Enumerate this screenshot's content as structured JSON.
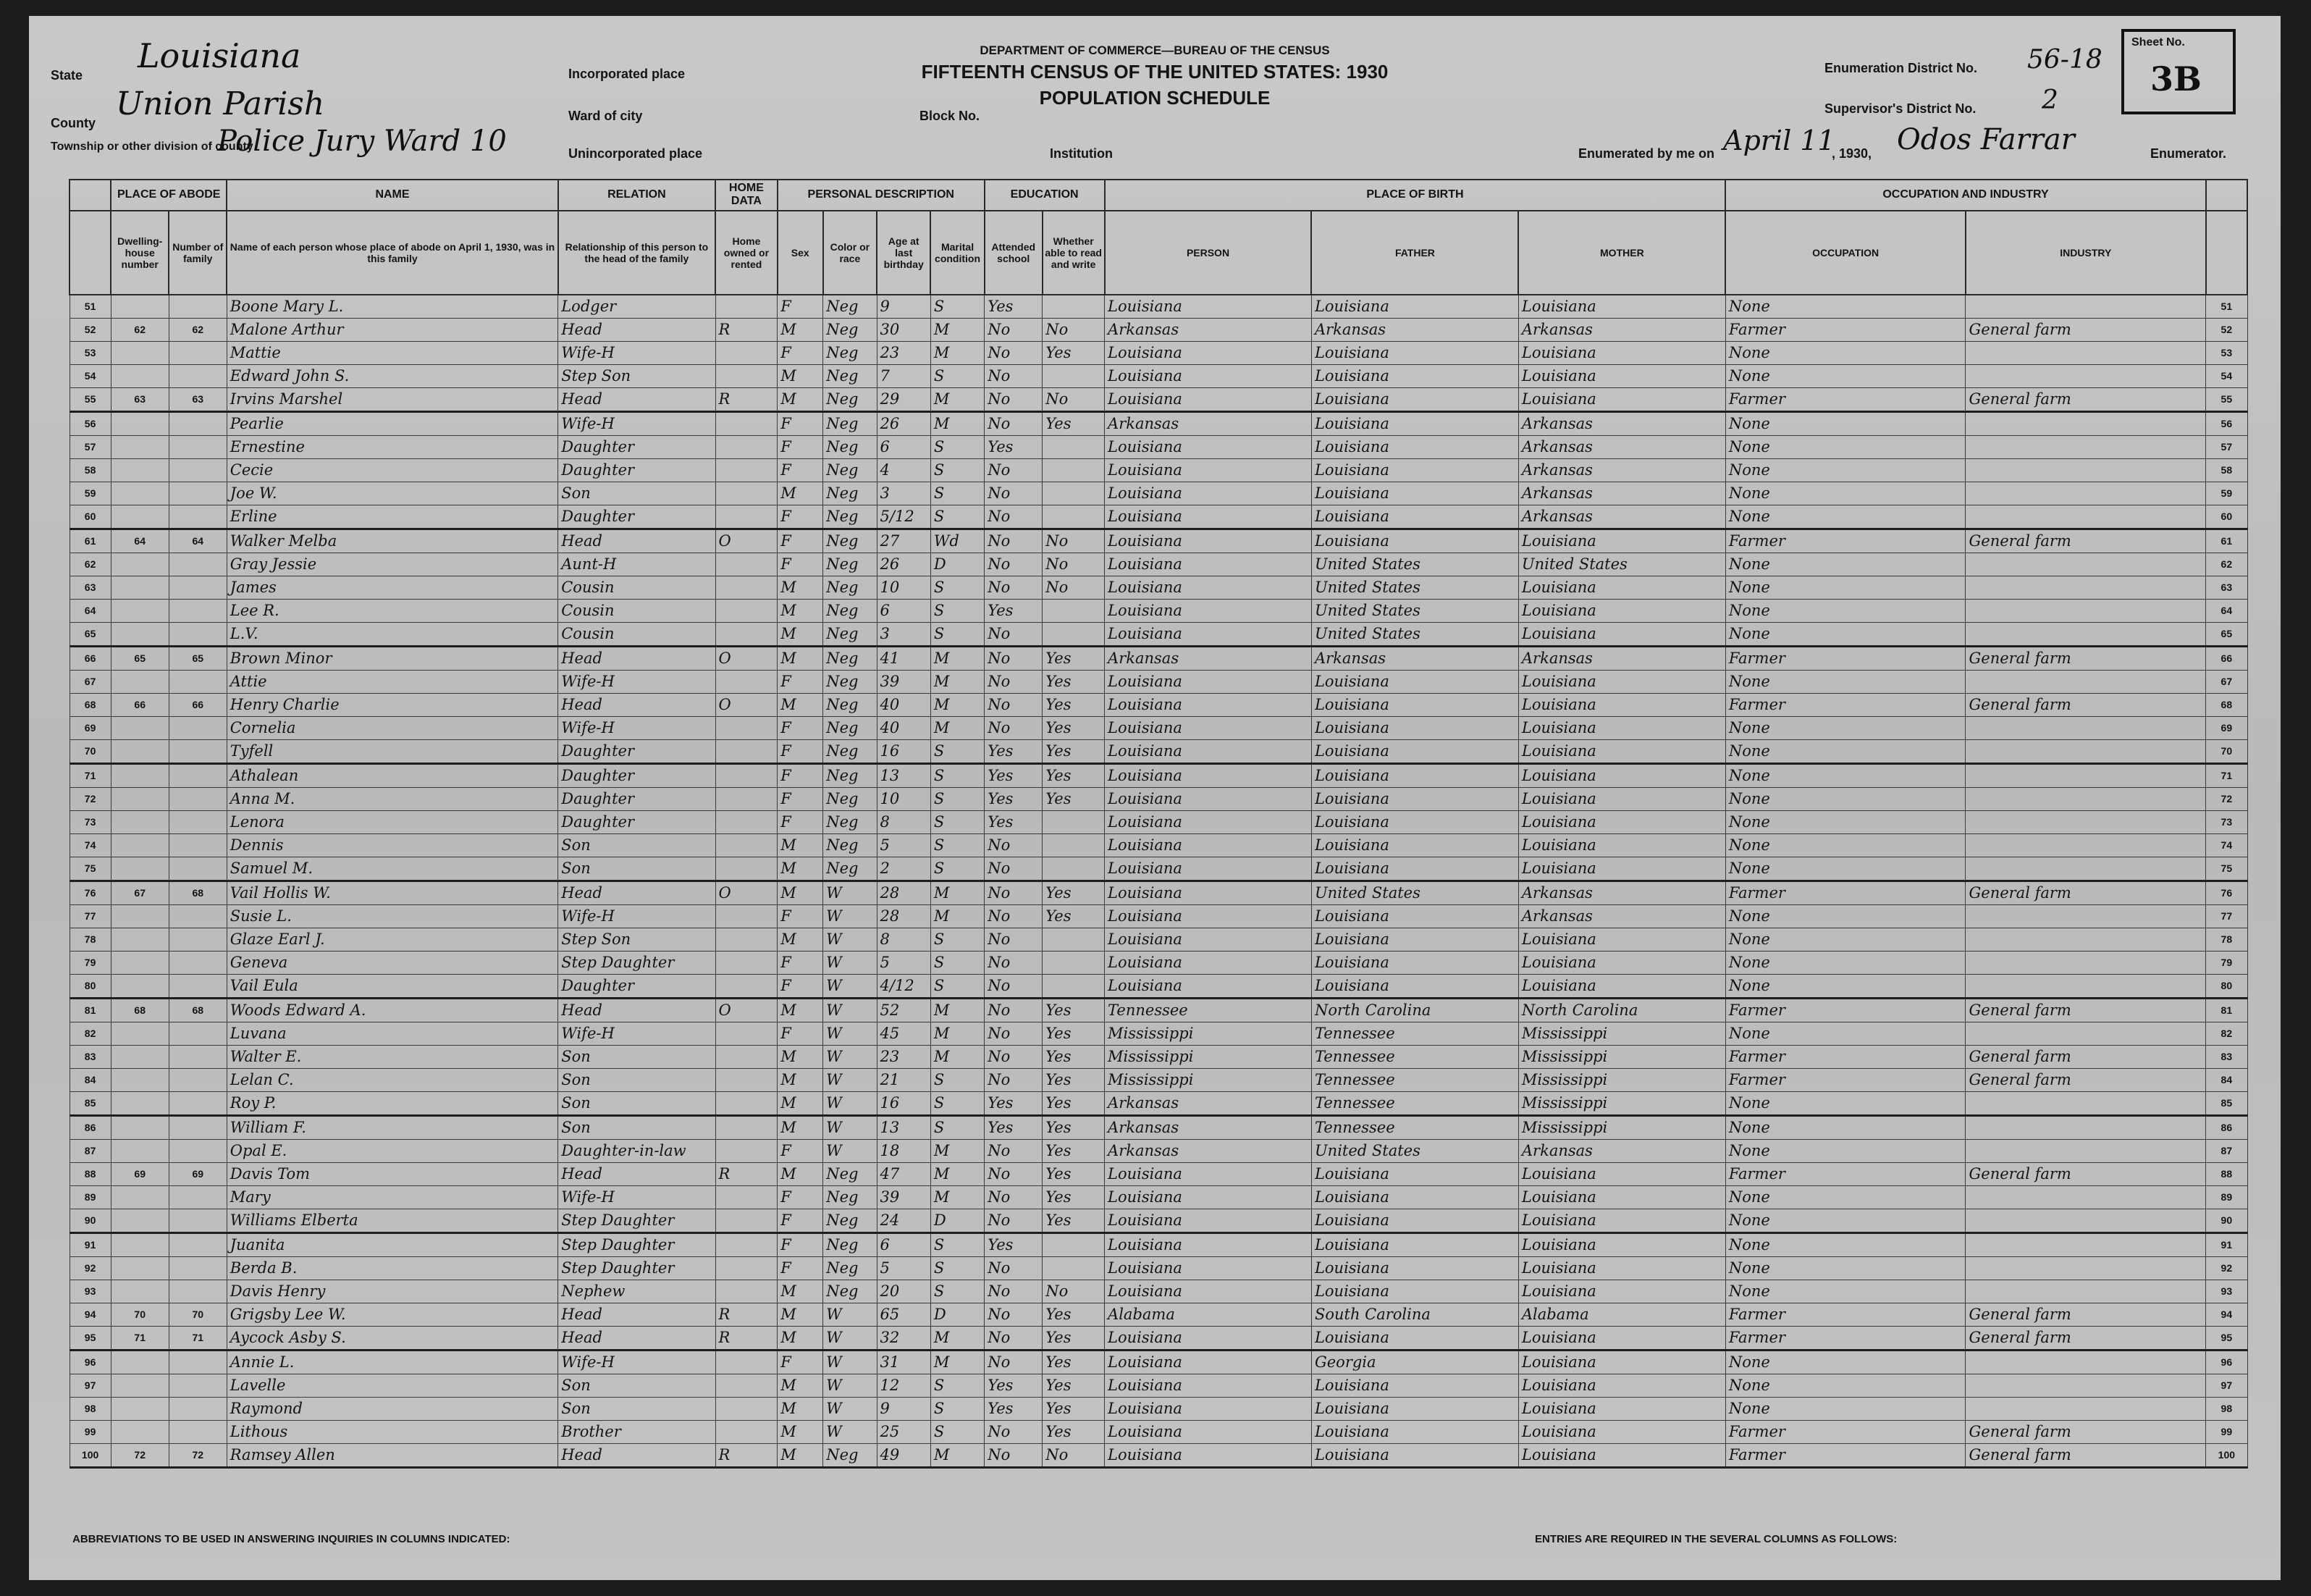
{
  "header": {
    "department": "DEPARTMENT OF COMMERCE—BUREAU OF THE CENSUS",
    "title": "FIFTEENTH CENSUS OF THE UNITED STATES: 1930",
    "subtitle": "POPULATION SCHEDULE",
    "state": {
      "label": "State",
      "value": "Louisiana"
    },
    "county": {
      "label": "County",
      "value": "Union Parish"
    },
    "township": {
      "label": "Township or other division of county",
      "value": "Police Jury Ward 10"
    },
    "incorporated_place": "Incorporated place",
    "ward": "Ward of city",
    "block": "Block No.",
    "unincorporated_place": "Unincorporated place",
    "institution": "Institution",
    "enumeration_district": {
      "label": "Enumeration District No.",
      "value": "56-18"
    },
    "supervisor_district": {
      "label": "Supervisor's District No.",
      "value": "2"
    },
    "enumerated": {
      "label": "Enumerated by me on",
      "date": "April 11",
      "year": ", 1930,",
      "enumerator": "Odos Farrar",
      "suffix": "Enumerator."
    },
    "sheet": {
      "label": "Sheet No.",
      "value": "3B"
    }
  },
  "table": {
    "groups": [
      "PLACE OF ABODE",
      "NAME",
      "RELATION",
      "HOME DATA",
      "PERSONAL DESCRIPTION",
      "EDUCATION",
      "PLACE OF BIRTH",
      "OCCUPATION AND INDUSTRY"
    ],
    "columns": [
      null,
      "Dwelling-house number",
      "Number of family",
      "Name of each person whose place of abode on April 1, 1930, was in this family",
      "Relationship of this person to the head of the family",
      "Home owned or rented",
      "Sex",
      "Color or race",
      "Age at last birthday",
      "Marital condition",
      "Attended school",
      "Whether able to read and write",
      "PERSON",
      "FATHER",
      "MOTHER",
      "OCCUPATION",
      "INDUSTRY"
    ],
    "rows": [
      [
        51,
        null,
        null,
        "Boone Mary L.",
        "Lodger",
        null,
        "F",
        "Neg",
        "9",
        "S",
        "Yes",
        null,
        "Louisiana",
        "Louisiana",
        "Louisiana",
        "None",
        null
      ],
      [
        52,
        62,
        62,
        "Malone Arthur",
        "Head",
        "R",
        "M",
        "Neg",
        "30",
        "M",
        "No",
        "No",
        "Arkansas",
        "Arkansas",
        "Arkansas",
        "Farmer",
        "General farm"
      ],
      [
        53,
        null,
        null,
        "Mattie",
        "Wife-H",
        null,
        "F",
        "Neg",
        "23",
        "M",
        "No",
        "Yes",
        "Louisiana",
        "Louisiana",
        "Louisiana",
        "None",
        null
      ],
      [
        54,
        null,
        null,
        "Edward John S.",
        "Step Son",
        null,
        "M",
        "Neg",
        "7",
        "S",
        "No",
        null,
        "Louisiana",
        "Louisiana",
        "Louisiana",
        "None",
        null
      ],
      [
        55,
        63,
        63,
        "Irvins Marshel",
        "Head",
        "R",
        "M",
        "Neg",
        "29",
        "M",
        "No",
        "No",
        "Louisiana",
        "Louisiana",
        "Louisiana",
        "Farmer",
        "General farm"
      ],
      [
        56,
        null,
        null,
        "Pearlie",
        "Wife-H",
        null,
        "F",
        "Neg",
        "26",
        "M",
        "No",
        "Yes",
        "Arkansas",
        "Louisiana",
        "Arkansas",
        "None",
        null
      ],
      [
        57,
        null,
        null,
        "Ernestine",
        "Daughter",
        null,
        "F",
        "Neg",
        "6",
        "S",
        "Yes",
        null,
        "Louisiana",
        "Louisiana",
        "Arkansas",
        "None",
        null
      ],
      [
        58,
        null,
        null,
        "Cecie",
        "Daughter",
        null,
        "F",
        "Neg",
        "4",
        "S",
        "No",
        null,
        "Louisiana",
        "Louisiana",
        "Arkansas",
        "None",
        null
      ],
      [
        59,
        null,
        null,
        "Joe W.",
        "Son",
        null,
        "M",
        "Neg",
        "3",
        "S",
        "No",
        null,
        "Louisiana",
        "Louisiana",
        "Arkansas",
        "None",
        null
      ],
      [
        60,
        null,
        null,
        "Erline",
        "Daughter",
        null,
        "F",
        "Neg",
        "5/12",
        "S",
        "No",
        null,
        "Louisiana",
        "Louisiana",
        "Arkansas",
        "None",
        null
      ],
      [
        61,
        64,
        64,
        "Walker Melba",
        "Head",
        "O",
        "F",
        "Neg",
        "27",
        "Wd",
        "No",
        "No",
        "Louisiana",
        "Louisiana",
        "Louisiana",
        "Farmer",
        "General farm"
      ],
      [
        62,
        null,
        null,
        "Gray Jessie",
        "Aunt-H",
        null,
        "F",
        "Neg",
        "26",
        "D",
        "No",
        "No",
        "Louisiana",
        "United States",
        "United States",
        "None",
        null
      ],
      [
        63,
        null,
        null,
        "James",
        "Cousin",
        null,
        "M",
        "Neg",
        "10",
        "S",
        "No",
        "No",
        "Louisiana",
        "United States",
        "Louisiana",
        "None",
        null
      ],
      [
        64,
        null,
        null,
        "Lee R.",
        "Cousin",
        null,
        "M",
        "Neg",
        "6",
        "S",
        "Yes",
        null,
        "Louisiana",
        "United States",
        "Louisiana",
        "None",
        null
      ],
      [
        65,
        null,
        null,
        "L.V.",
        "Cousin",
        null,
        "M",
        "Neg",
        "3",
        "S",
        "No",
        null,
        "Louisiana",
        "United States",
        "Louisiana",
        "None",
        null
      ],
      [
        66,
        65,
        65,
        "Brown Minor",
        "Head",
        "O",
        "M",
        "Neg",
        "41",
        "M",
        "No",
        "Yes",
        "Arkansas",
        "Arkansas",
        "Arkansas",
        "Farmer",
        "General farm"
      ],
      [
        67,
        null,
        null,
        "Attie",
        "Wife-H",
        null,
        "F",
        "Neg",
        "39",
        "M",
        "No",
        "Yes",
        "Louisiana",
        "Louisiana",
        "Louisiana",
        "None",
        null
      ],
      [
        68,
        66,
        66,
        "Henry Charlie",
        "Head",
        "O",
        "M",
        "Neg",
        "40",
        "M",
        "No",
        "Yes",
        "Louisiana",
        "Louisiana",
        "Louisiana",
        "Farmer",
        "General farm"
      ],
      [
        69,
        null,
        null,
        "Cornelia",
        "Wife-H",
        null,
        "F",
        "Neg",
        "40",
        "M",
        "No",
        "Yes",
        "Louisiana",
        "Louisiana",
        "Louisiana",
        "None",
        null
      ],
      [
        70,
        null,
        null,
        "Tyfell",
        "Daughter",
        null,
        "F",
        "Neg",
        "16",
        "S",
        "Yes",
        "Yes",
        "Louisiana",
        "Louisiana",
        "Louisiana",
        "None",
        null
      ],
      [
        71,
        null,
        null,
        "Athalean",
        "Daughter",
        null,
        "F",
        "Neg",
        "13",
        "S",
        "Yes",
        "Yes",
        "Louisiana",
        "Louisiana",
        "Louisiana",
        "None",
        null
      ],
      [
        72,
        null,
        null,
        "Anna M.",
        "Daughter",
        null,
        "F",
        "Neg",
        "10",
        "S",
        "Yes",
        "Yes",
        "Louisiana",
        "Louisiana",
        "Louisiana",
        "None",
        null
      ],
      [
        73,
        null,
        null,
        "Lenora",
        "Daughter",
        null,
        "F",
        "Neg",
        "8",
        "S",
        "Yes",
        null,
        "Louisiana",
        "Louisiana",
        "Louisiana",
        "None",
        null
      ],
      [
        74,
        null,
        null,
        "Dennis",
        "Son",
        null,
        "M",
        "Neg",
        "5",
        "S",
        "No",
        null,
        "Louisiana",
        "Louisiana",
        "Louisiana",
        "None",
        null
      ],
      [
        75,
        null,
        null,
        "Samuel M.",
        "Son",
        null,
        "M",
        "Neg",
        "2",
        "S",
        "No",
        null,
        "Louisiana",
        "Louisiana",
        "Louisiana",
        "None",
        null
      ],
      [
        76,
        67,
        68,
        "Vail Hollis W.",
        "Head",
        "O",
        "M",
        "W",
        "28",
        "M",
        "No",
        "Yes",
        "Louisiana",
        "United States",
        "Arkansas",
        "Farmer",
        "General farm"
      ],
      [
        77,
        null,
        null,
        "Susie L.",
        "Wife-H",
        null,
        "F",
        "W",
        "28",
        "M",
        "No",
        "Yes",
        "Louisiana",
        "Louisiana",
        "Arkansas",
        "None",
        null
      ],
      [
        78,
        null,
        null,
        "Glaze Earl J.",
        "Step Son",
        null,
        "M",
        "W",
        "8",
        "S",
        "No",
        null,
        "Louisiana",
        "Louisiana",
        "Louisiana",
        "None",
        null
      ],
      [
        79,
        null,
        null,
        "Geneva",
        "Step Daughter",
        null,
        "F",
        "W",
        "5",
        "S",
        "No",
        null,
        "Louisiana",
        "Louisiana",
        "Louisiana",
        "None",
        null
      ],
      [
        80,
        null,
        null,
        "Vail Eula",
        "Daughter",
        null,
        "F",
        "W",
        "4/12",
        "S",
        "No",
        null,
        "Louisiana",
        "Louisiana",
        "Louisiana",
        "None",
        null
      ],
      [
        81,
        68,
        68,
        "Woods Edward A.",
        "Head",
        "O",
        "M",
        "W",
        "52",
        "M",
        "No",
        "Yes",
        "Tennessee",
        "North Carolina",
        "North Carolina",
        "Farmer",
        "General farm"
      ],
      [
        82,
        null,
        null,
        "Luvana",
        "Wife-H",
        null,
        "F",
        "W",
        "45",
        "M",
        "No",
        "Yes",
        "Mississippi",
        "Tennessee",
        "Mississippi",
        "None",
        null
      ],
      [
        83,
        null,
        null,
        "Walter E.",
        "Son",
        null,
        "M",
        "W",
        "23",
        "M",
        "No",
        "Yes",
        "Mississippi",
        "Tennessee",
        "Mississippi",
        "Farmer",
        "General farm"
      ],
      [
        84,
        null,
        null,
        "Lelan C.",
        "Son",
        null,
        "M",
        "W",
        "21",
        "S",
        "No",
        "Yes",
        "Mississippi",
        "Tennessee",
        "Mississippi",
        "Farmer",
        "General farm"
      ],
      [
        85,
        null,
        null,
        "Roy P.",
        "Son",
        null,
        "M",
        "W",
        "16",
        "S",
        "Yes",
        "Yes",
        "Arkansas",
        "Tennessee",
        "Mississippi",
        "None",
        null
      ],
      [
        86,
        null,
        null,
        "William F.",
        "Son",
        null,
        "M",
        "W",
        "13",
        "S",
        "Yes",
        "Yes",
        "Arkansas",
        "Tennessee",
        "Mississippi",
        "None",
        null
      ],
      [
        87,
        null,
        null,
        "Opal E.",
        "Daughter-in-law",
        null,
        "F",
        "W",
        "18",
        "M",
        "No",
        "Yes",
        "Arkansas",
        "United States",
        "Arkansas",
        "None",
        null
      ],
      [
        88,
        69,
        69,
        "Davis Tom",
        "Head",
        "R",
        "M",
        "Neg",
        "47",
        "M",
        "No",
        "Yes",
        "Louisiana",
        "Louisiana",
        "Louisiana",
        "Farmer",
        "General farm"
      ],
      [
        89,
        null,
        null,
        "Mary",
        "Wife-H",
        null,
        "F",
        "Neg",
        "39",
        "M",
        "No",
        "Yes",
        "Louisiana",
        "Louisiana",
        "Louisiana",
        "None",
        null
      ],
      [
        90,
        null,
        null,
        "Williams Elberta",
        "Step Daughter",
        null,
        "F",
        "Neg",
        "24",
        "D",
        "No",
        "Yes",
        "Louisiana",
        "Louisiana",
        "Louisiana",
        "None",
        null
      ],
      [
        91,
        null,
        null,
        "Juanita",
        "Step Daughter",
        null,
        "F",
        "Neg",
        "6",
        "S",
        "Yes",
        null,
        "Louisiana",
        "Louisiana",
        "Louisiana",
        "None",
        null
      ],
      [
        92,
        null,
        null,
        "Berda B.",
        "Step Daughter",
        null,
        "F",
        "Neg",
        "5",
        "S",
        "No",
        null,
        "Louisiana",
        "Louisiana",
        "Louisiana",
        "None",
        null
      ],
      [
        93,
        null,
        null,
        "Davis Henry",
        "Nephew",
        null,
        "M",
        "Neg",
        "20",
        "S",
        "No",
        "No",
        "Louisiana",
        "Louisiana",
        "Louisiana",
        "None",
        null
      ],
      [
        94,
        70,
        70,
        "Grigsby Lee W.",
        "Head",
        "R",
        "M",
        "W",
        "65",
        "D",
        "No",
        "Yes",
        "Alabama",
        "South Carolina",
        "Alabama",
        "Farmer",
        "General farm"
      ],
      [
        95,
        71,
        71,
        "Aycock Asby S.",
        "Head",
        "R",
        "M",
        "W",
        "32",
        "M",
        "No",
        "Yes",
        "Louisiana",
        "Louisiana",
        "Louisiana",
        "Farmer",
        "General farm"
      ],
      [
        96,
        null,
        null,
        "Annie L.",
        "Wife-H",
        null,
        "F",
        "W",
        "31",
        "M",
        "No",
        "Yes",
        "Louisiana",
        "Georgia",
        "Louisiana",
        "None",
        null
      ],
      [
        97,
        null,
        null,
        "Lavelle",
        "Son",
        null,
        "M",
        "W",
        "12",
        "S",
        "Yes",
        "Yes",
        "Louisiana",
        "Louisiana",
        "Louisiana",
        "None",
        null
      ],
      [
        98,
        null,
        null,
        "Raymond",
        "Son",
        null,
        "M",
        "W",
        "9",
        "S",
        "Yes",
        "Yes",
        "Louisiana",
        "Louisiana",
        "Louisiana",
        "None",
        null
      ],
      [
        99,
        null,
        null,
        "Lithous",
        "Brother",
        null,
        "M",
        "W",
        "25",
        "S",
        "No",
        "Yes",
        "Louisiana",
        "Louisiana",
        "Louisiana",
        "Farmer",
        "General farm"
      ],
      [
        100,
        72,
        72,
        "Ramsey Allen",
        "Head",
        "R",
        "M",
        "Neg",
        "49",
        "M",
        "No",
        "No",
        "Louisiana",
        "Louisiana",
        "Louisiana",
        "Farmer",
        "General farm"
      ]
    ]
  },
  "footer": {
    "abbreviations": "ABBREVIATIONS TO BE USED IN ANSWERING INQUIRIES IN COLUMNS INDICATED:",
    "entries": "ENTRIES ARE REQUIRED IN THE SEVERAL COLUMNS AS FOLLOWS:"
  }
}
